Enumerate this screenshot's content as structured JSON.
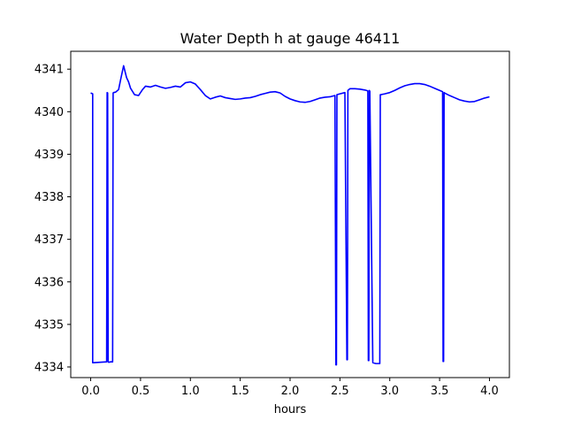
{
  "chart_data": {
    "type": "line",
    "title": "Water Depth h at gauge 46411",
    "xlabel": "hours",
    "ylabel": "",
    "xlim": [
      -0.2,
      4.2
    ],
    "ylim": [
      4333.75,
      4341.42
    ],
    "xticks": [
      0.0,
      0.5,
      1.0,
      1.5,
      2.0,
      2.5,
      3.0,
      3.5,
      4.0
    ],
    "xtick_labels": [
      "0.0",
      "0.5",
      "1.0",
      "1.5",
      "2.0",
      "2.5",
      "3.0",
      "3.5",
      "4.0"
    ],
    "yticks": [
      4334,
      4335,
      4336,
      4337,
      4338,
      4339,
      4340,
      4341
    ],
    "ytick_labels": [
      "4334",
      "4335",
      "4336",
      "4337",
      "4338",
      "4339",
      "4340",
      "4341"
    ],
    "grid": false,
    "legend": "none",
    "series": [
      {
        "color": "#0000ff",
        "x": [
          0.0,
          0.02,
          0.02,
          0.16,
          0.165,
          0.17,
          0.175,
          0.18,
          0.2,
          0.22,
          0.225,
          0.23,
          0.25,
          0.28,
          0.3,
          0.33,
          0.36,
          0.38,
          0.4,
          0.44,
          0.48,
          0.52,
          0.55,
          0.6,
          0.65,
          0.7,
          0.75,
          0.8,
          0.85,
          0.9,
          0.95,
          1.0,
          1.05,
          1.1,
          1.15,
          1.2,
          1.25,
          1.3,
          1.35,
          1.4,
          1.45,
          1.5,
          1.55,
          1.6,
          1.65,
          1.7,
          1.75,
          1.8,
          1.85,
          1.9,
          1.95,
          2.0,
          2.05,
          2.1,
          2.15,
          2.2,
          2.25,
          2.3,
          2.35,
          2.4,
          2.45,
          2.46,
          2.465,
          2.47,
          2.5,
          2.55,
          2.57,
          2.575,
          2.58,
          2.6,
          2.65,
          2.7,
          2.75,
          2.78,
          2.785,
          2.79,
          2.795,
          2.8,
          2.83,
          2.86,
          2.9,
          2.905,
          2.91,
          2.95,
          3.0,
          3.05,
          3.1,
          3.15,
          3.2,
          3.25,
          3.3,
          3.35,
          3.4,
          3.45,
          3.5,
          3.53,
          3.535,
          3.54,
          3.545,
          3.55,
          3.6,
          3.65,
          3.7,
          3.75,
          3.8,
          3.85,
          3.9,
          3.95,
          4.0
        ],
        "y": [
          4340.44,
          4340.42,
          4334.1,
          4334.12,
          4340.45,
          4340.44,
          4334.12,
          4334.11,
          4334.12,
          4334.12,
          4340.44,
          4340.45,
          4340.46,
          4340.52,
          4340.75,
          4341.08,
          4340.8,
          4340.7,
          4340.55,
          4340.4,
          4340.38,
          4340.52,
          4340.6,
          4340.58,
          4340.62,
          4340.58,
          4340.55,
          4340.57,
          4340.6,
          4340.58,
          4340.68,
          4340.7,
          4340.65,
          4340.52,
          4340.38,
          4340.3,
          4340.34,
          4340.37,
          4340.33,
          4340.31,
          4340.29,
          4340.3,
          4340.32,
          4340.33,
          4340.36,
          4340.4,
          4340.43,
          4340.46,
          4340.47,
          4340.44,
          4340.36,
          4340.3,
          4340.26,
          4340.23,
          4340.22,
          4340.24,
          4340.28,
          4340.32,
          4340.34,
          4340.35,
          4340.38,
          4334.05,
          4334.05,
          4340.4,
          4340.42,
          4340.45,
          4334.17,
          4334.17,
          4340.5,
          4340.54,
          4340.54,
          4340.53,
          4340.51,
          4340.49,
          4334.15,
          4334.15,
          4340.5,
          4340.48,
          4334.1,
          4334.08,
          4334.08,
          4340.4,
          4340.4,
          4340.42,
          4340.45,
          4340.5,
          4340.56,
          4340.61,
          4340.64,
          4340.66,
          4340.66,
          4340.64,
          4340.6,
          4340.55,
          4340.5,
          4340.47,
          4334.13,
          4334.13,
          4340.45,
          4340.44,
          4340.38,
          4340.33,
          4340.28,
          4340.25,
          4340.23,
          4340.24,
          4340.28,
          4340.32,
          4340.35
        ]
      }
    ]
  }
}
